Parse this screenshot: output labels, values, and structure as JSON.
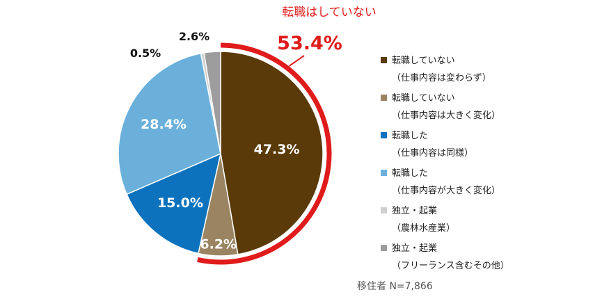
{
  "chart_data": {
    "type": "pie",
    "slices": [
      {
        "label": "転職していない（仕事内容は変わらず）",
        "value": 47.3,
        "value_label": "47.3%",
        "color": "#5a3a08",
        "text_color": "#ffffff"
      },
      {
        "label": "転職していない（仕事内容は大きく変化）",
        "value": 6.2,
        "value_label": "6.2%",
        "color": "#9a8462",
        "text_color": "#ffffff"
      },
      {
        "label": "転職した（仕事内容は同様）",
        "value": 15.0,
        "value_label": "15.0%",
        "color": "#0c72bd",
        "text_color": "#ffffff"
      },
      {
        "label": "転職した（仕事内容が大きく変化）",
        "value": 28.4,
        "value_label": "28.4%",
        "color": "#6ab0db",
        "text_color": "#ffffff"
      },
      {
        "label": "独立・起業（農林水産業）",
        "value": 0.5,
        "value_label": "0.5%",
        "color": "#cfcfcf",
        "text_color": "#111111"
      },
      {
        "label": "独立・起業（フリーランス含むその他）",
        "value": 2.6,
        "value_label": "2.6%",
        "color": "#9d9d9d",
        "text_color": "#111111"
      }
    ],
    "highlight": {
      "title": "転職はしていない",
      "value_label": "53.4%",
      "value": 53.4,
      "color": "#e01b1b"
    },
    "note": "移住者 N=7,866",
    "legend_position": "right"
  },
  "legend": [
    {
      "line1": "転職していない",
      "line2": "（仕事内容は変わらず）",
      "color": "#5a3a08"
    },
    {
      "line1": "転職していない",
      "line2": "（仕事内容は大きく変化）",
      "color": "#9a8462"
    },
    {
      "line1": "転職した",
      "line2": "（仕事内容は同様）",
      "color": "#0c72bd"
    },
    {
      "line1": "転職した",
      "line2": "（仕事内容が大きく変化）",
      "color": "#6ab0db"
    },
    {
      "line1": "独立・起業",
      "line2": "（農林水産業）",
      "color": "#cfcfcf"
    },
    {
      "line1": "独立・起業",
      "line2": "（フリーランス含むその他）",
      "color": "#9d9d9d"
    }
  ]
}
